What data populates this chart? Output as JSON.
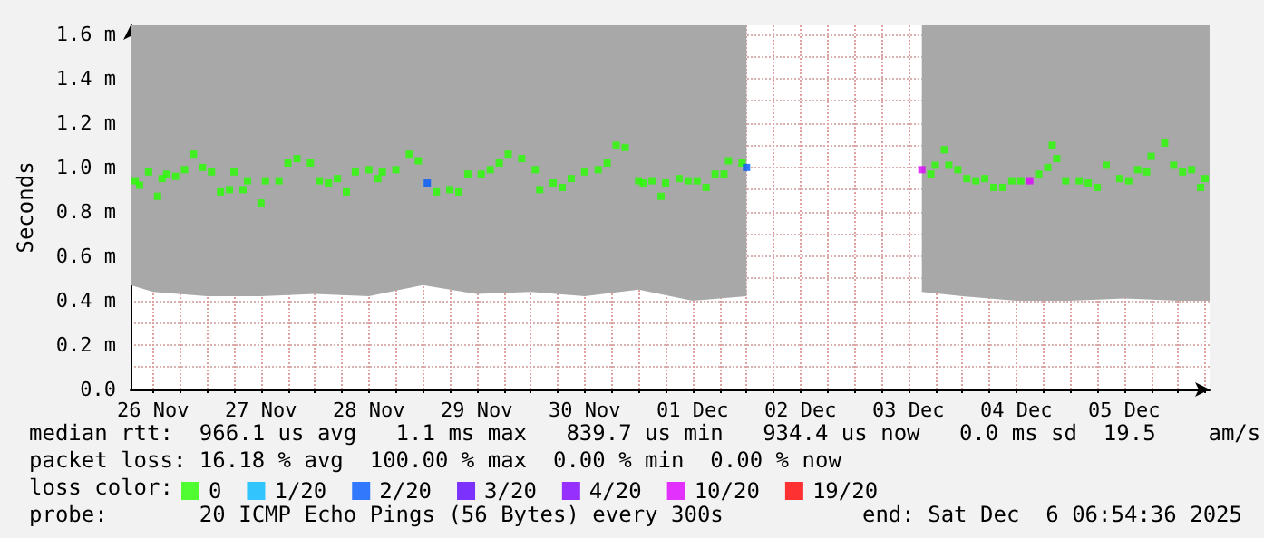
{
  "chart_data": {
    "type": "scatter",
    "ylabel": "Seconds",
    "legend_title": "loss color:",
    "legend": "bottom",
    "grid": true,
    "marker": "square",
    "xlim": [
      "2025-11-26T07:00",
      "2025-12-06T07:00"
    ],
    "xticks": [
      {
        "value": "2025-11-26T12:00",
        "label": "26 Nov"
      },
      {
        "value": "2025-11-26T18:00",
        "label": null
      },
      {
        "value": "2025-11-27T00:00",
        "label": null
      },
      {
        "value": "2025-11-27T06:00",
        "label": null
      },
      {
        "value": "2025-11-27T12:00",
        "label": "27 Nov"
      },
      {
        "value": "2025-11-27T18:00",
        "label": null
      },
      {
        "value": "2025-11-28T00:00",
        "label": null
      },
      {
        "value": "2025-11-28T06:00",
        "label": null
      },
      {
        "value": "2025-11-28T12:00",
        "label": "28 Nov"
      },
      {
        "value": "2025-11-28T18:00",
        "label": null
      },
      {
        "value": "2025-11-29T00:00",
        "label": null
      },
      {
        "value": "2025-11-29T06:00",
        "label": null
      },
      {
        "value": "2025-11-29T12:00",
        "label": "29 Nov"
      },
      {
        "value": "2025-11-29T18:00",
        "label": null
      },
      {
        "value": "2025-11-30T00:00",
        "label": null
      },
      {
        "value": "2025-11-30T06:00",
        "label": null
      },
      {
        "value": "2025-11-30T12:00",
        "label": "30 Nov"
      },
      {
        "value": "2025-11-30T18:00",
        "label": null
      },
      {
        "value": "2025-12-01T00:00",
        "label": null
      },
      {
        "value": "2025-12-01T06:00",
        "label": null
      },
      {
        "value": "2025-12-01T12:00",
        "label": "01 Dec"
      },
      {
        "value": "2025-12-01T18:00",
        "label": null
      },
      {
        "value": "2025-12-02T00:00",
        "label": null
      },
      {
        "value": "2025-12-02T06:00",
        "label": null
      },
      {
        "value": "2025-12-02T12:00",
        "label": "02 Dec"
      },
      {
        "value": "2025-12-02T18:00",
        "label": null
      },
      {
        "value": "2025-12-03T00:00",
        "label": null
      },
      {
        "value": "2025-12-03T06:00",
        "label": null
      },
      {
        "value": "2025-12-03T12:00",
        "label": "03 Dec"
      },
      {
        "value": "2025-12-03T18:00",
        "label": null
      },
      {
        "value": "2025-12-04T00:00",
        "label": null
      },
      {
        "value": "2025-12-04T06:00",
        "label": null
      },
      {
        "value": "2025-12-04T12:00",
        "label": "04 Dec"
      },
      {
        "value": "2025-12-04T18:00",
        "label": null
      },
      {
        "value": "2025-12-05T00:00",
        "label": null
      },
      {
        "value": "2025-12-05T06:00",
        "label": null
      },
      {
        "value": "2025-12-05T12:00",
        "label": "05 Dec"
      },
      {
        "value": "2025-12-05T18:00",
        "label": null
      },
      {
        "value": "2025-12-06T00:00",
        "label": null
      },
      {
        "value": "2025-12-06T06:00",
        "label": null
      }
    ],
    "ylim": [
      0,
      1.64
    ],
    "yticks": [
      {
        "value": 0,
        "label": "0.0"
      },
      {
        "value": 0.1,
        "label": null
      },
      {
        "value": 0.2,
        "label": "0.2 m"
      },
      {
        "value": 0.3,
        "label": null
      },
      {
        "value": 0.4,
        "label": "0.4 m"
      },
      {
        "value": 0.5,
        "label": null
      },
      {
        "value": 0.6,
        "label": "0.6 m"
      },
      {
        "value": 0.7,
        "label": null
      },
      {
        "value": 0.8,
        "label": "0.8 m"
      },
      {
        "value": 0.9,
        "label": null
      },
      {
        "value": 1.0,
        "label": "1.0 m"
      },
      {
        "value": 1.1,
        "label": null
      },
      {
        "value": 1.2,
        "label": "1.2 m"
      },
      {
        "value": 1.3,
        "label": null
      },
      {
        "value": 1.4,
        "label": "1.4 m"
      },
      {
        "value": 1.5,
        "label": null
      },
      {
        "value": 1.6,
        "label": "1.6 m"
      }
    ],
    "series": [
      {
        "type": "area",
        "color": "#a8a8a8",
        "x": [
          "2025-11-26T07:00",
          "2025-11-26T12:00",
          "2025-11-27T00:00",
          "2025-11-27T12:00",
          "2025-11-28T00:00",
          "2025-11-28T12:00",
          "2025-11-29T00:00",
          "2025-11-29T12:00",
          "2025-11-30T00:00",
          "2025-11-30T12:00",
          "2025-12-01T00:00",
          "2025-12-01T12:00",
          "2025-12-02T00:00",
          "2025-12-02T12:00",
          "2025-12-03T15:00",
          "2025-12-04T00:00",
          "2025-12-04T12:00",
          "2025-12-05T00:00",
          "2025-12-05T12:00",
          "2025-12-06T00:00",
          "2025-12-06T07:00"
        ],
        "values": [
          null,
          null,
          null,
          null,
          null,
          null,
          null,
          null,
          null,
          null,
          null,
          null,
          null,
          null,
          null,
          null,
          null,
          null,
          null,
          null,
          null
        ],
        "lower": [
          0.47,
          0.44,
          0.42,
          0.42,
          0.43,
          0.42,
          0.47,
          0.43,
          0.44,
          0.42,
          0.45,
          0.4,
          0.42,
          null,
          0.44,
          0.42,
          0.4,
          0.4,
          0.41,
          0.4,
          0.4
        ],
        "upper": [
          1.64,
          1.64,
          1.64,
          1.64,
          1.64,
          1.64,
          1.64,
          1.64,
          1.64,
          1.64,
          1.64,
          1.64,
          1.64,
          null,
          1.64,
          1.64,
          1.64,
          1.64,
          1.64,
          1.64,
          1.64
        ]
      },
      {
        "name": "0",
        "color": "#26ff00",
        "x": [
          "2025-11-26T08:00",
          "2025-11-26T09:00",
          "2025-11-26T11:00",
          "2025-11-26T13:00",
          "2025-11-26T14:00",
          "2025-11-26T15:00",
          "2025-11-26T17:00",
          "2025-11-26T19:00",
          "2025-11-26T21:00",
          "2025-11-26T23:00",
          "2025-11-27T01:00",
          "2025-11-27T03:00",
          "2025-11-27T05:00",
          "2025-11-27T06:00",
          "2025-11-27T08:00",
          "2025-11-27T09:00",
          "2025-11-27T12:00",
          "2025-11-27T13:00",
          "2025-11-27T16:00",
          "2025-11-27T18:00",
          "2025-11-27T20:00",
          "2025-11-27T23:00",
          "2025-11-28T01:00",
          "2025-11-28T03:00",
          "2025-11-28T05:00",
          "2025-11-28T07:00",
          "2025-11-28T09:00",
          "2025-11-28T12:00",
          "2025-11-28T14:00",
          "2025-11-28T15:00",
          "2025-11-28T18:00",
          "2025-11-28T21:00",
          "2025-11-28T23:00",
          "2025-11-29T03:00",
          "2025-11-29T06:00",
          "2025-11-29T08:00",
          "2025-11-29T10:00",
          "2025-11-29T13:00",
          "2025-11-29T15:00",
          "2025-11-29T17:00",
          "2025-11-29T19:00",
          "2025-11-29T22:00",
          "2025-11-30T01:00",
          "2025-11-30T02:00",
          "2025-11-30T05:00",
          "2025-11-30T07:00",
          "2025-11-30T09:00",
          "2025-11-30T12:00",
          "2025-11-30T15:00",
          "2025-11-30T17:00",
          "2025-11-30T19:00",
          "2025-11-30T21:00",
          "2025-12-01T00:00",
          "2025-12-01T01:00",
          "2025-12-01T03:00",
          "2025-12-01T05:00",
          "2025-12-01T06:00",
          "2025-12-01T09:00",
          "2025-12-01T11:00",
          "2025-12-01T13:00",
          "2025-12-01T15:00",
          "2025-12-01T17:00",
          "2025-12-01T19:00",
          "2025-12-01T20:00",
          "2025-12-01T23:00",
          "2025-12-03T17:00",
          "2025-12-03T18:00",
          "2025-12-03T20:00",
          "2025-12-03T21:00",
          "2025-12-03T23:00",
          "2025-12-04T01:00",
          "2025-12-04T03:00",
          "2025-12-04T05:00",
          "2025-12-04T07:00",
          "2025-12-04T09:00",
          "2025-12-04T11:00",
          "2025-12-04T13:00",
          "2025-12-04T17:00",
          "2025-12-04T19:00",
          "2025-12-04T20:00",
          "2025-12-04T21:00",
          "2025-12-04T23:00",
          "2025-12-05T02:00",
          "2025-12-05T04:00",
          "2025-12-05T06:00",
          "2025-12-05T08:00",
          "2025-12-05T11:00",
          "2025-12-05T13:00",
          "2025-12-05T15:00",
          "2025-12-05T17:00",
          "2025-12-05T18:00",
          "2025-12-05T21:00",
          "2025-12-05T23:00",
          "2025-12-06T01:00",
          "2025-12-06T03:00",
          "2025-12-06T05:00",
          "2025-12-06T06:00"
        ],
        "values": [
          0.94,
          0.92,
          0.98,
          0.87,
          0.95,
          0.97,
          0.96,
          0.99,
          1.06,
          1.0,
          0.98,
          0.89,
          0.9,
          0.98,
          0.9,
          0.94,
          0.84,
          0.94,
          0.94,
          1.02,
          1.04,
          1.02,
          0.94,
          0.93,
          0.95,
          0.89,
          0.98,
          0.99,
          0.95,
          0.98,
          0.99,
          1.06,
          1.03,
          0.89,
          0.9,
          0.89,
          0.97,
          0.97,
          0.99,
          1.02,
          1.06,
          1.04,
          0.99,
          0.9,
          0.93,
          0.91,
          0.95,
          0.98,
          0.99,
          1.02,
          1.1,
          1.09,
          0.94,
          0.93,
          0.94,
          0.87,
          0.93,
          0.95,
          0.94,
          0.94,
          0.91,
          0.97,
          0.97,
          1.03,
          1.02,
          0.97,
          1.01,
          1.08,
          1.01,
          0.99,
          0.95,
          0.94,
          0.95,
          0.91,
          0.91,
          0.94,
          0.94,
          0.97,
          1.0,
          1.1,
          1.04,
          0.94,
          0.94,
          0.93,
          0.91,
          1.01,
          0.95,
          0.94,
          0.99,
          0.98,
          1.05,
          1.11,
          1.01,
          0.98,
          0.99,
          0.91,
          0.95
        ]
      },
      {
        "name": "1/20",
        "color": "#00b8ff"
      },
      {
        "name": "2/20",
        "color": "#0059ff",
        "x": [
          "2025-11-29T01:00",
          "2025-12-02T00:00"
        ],
        "values": [
          0.93,
          1.0
        ]
      },
      {
        "name": "3/20",
        "color": "#5e00ff"
      },
      {
        "name": "4/20",
        "color": "#7e00ff"
      },
      {
        "name": "10/20",
        "color": "#dd00ff",
        "x": [
          "2025-12-03T15:00",
          "2025-12-04T15:00"
        ],
        "values": [
          0.99,
          0.94
        ]
      },
      {
        "name": "19/20",
        "color": "#ff0000"
      }
    ],
    "annotations": [
      "median rtt:  966.1 us avg   1.1 ms max   839.7 us min   934.4 us now   0.0 ms sd  19.5    am/s",
      "packet loss: 16.18 % avg  100.00 % max  0.00 % min  0.00 % now",
      "probe:       20 ICMP Echo Pings (56 Bytes) every 300s",
      "end: Sat Dec  6 06:54:36 2025"
    ]
  }
}
